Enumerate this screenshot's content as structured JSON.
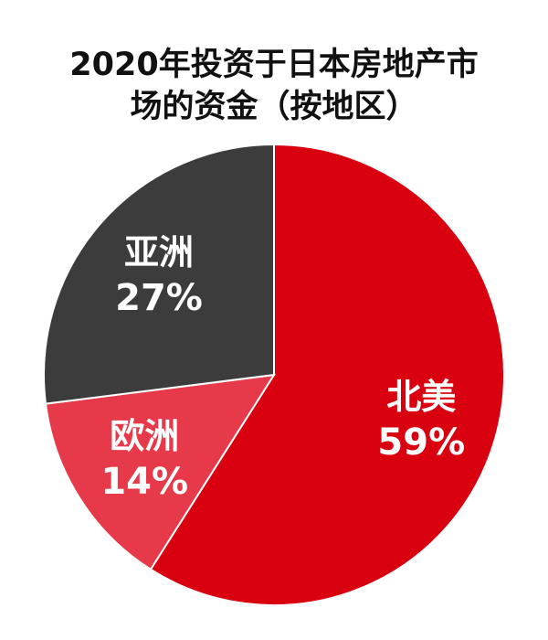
{
  "chart_data": {
    "type": "pie",
    "title_lines": [
      "2020年投资于日本房地产市",
      "场的资金（按地区）"
    ],
    "slices": [
      {
        "name": "北美",
        "value": 59,
        "label": "59%",
        "color": "#d9000f"
      },
      {
        "name": "欧洲",
        "value": 14,
        "label": "14%",
        "color": "#e63a4a"
      },
      {
        "name": "亚洲",
        "value": 27,
        "label": "27%",
        "color": "#3c3c3c"
      }
    ],
    "start_angle_deg": 0,
    "direction": "clockwise",
    "slice_border_color": "#ffffff",
    "label_color": "#ffffff",
    "legend": "none"
  }
}
